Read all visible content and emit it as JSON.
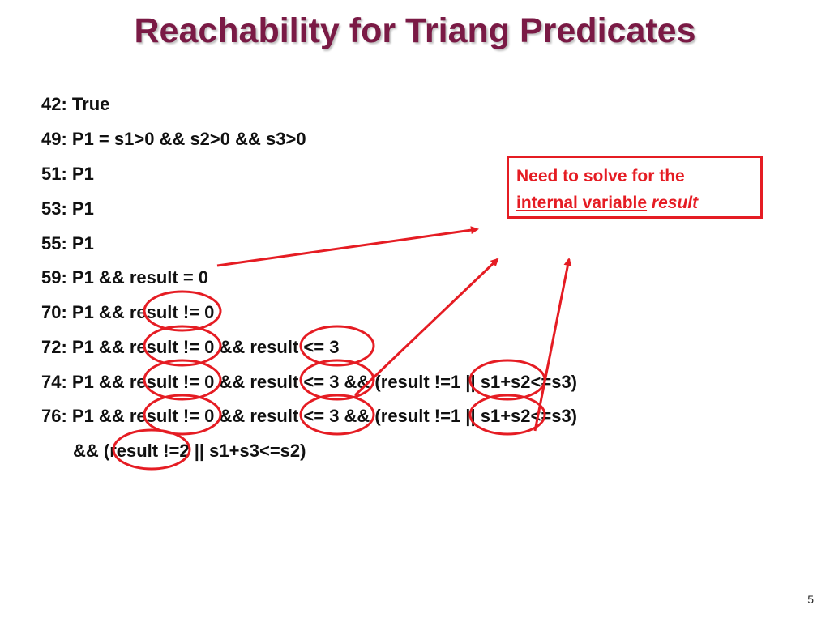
{
  "slide": {
    "title": "Reachability for Triang Predicates",
    "lines": [
      "42: True",
      "49: P1 = s1>0 && s2>0 && s3>0",
      "51: P1",
      "53: P1",
      "55: P1",
      "59: P1 && result = 0",
      "70: P1 && result != 0",
      "72: P1 && result != 0 && result <= 3",
      "74: P1 && result != 0 && result <= 3 && (result !=1 || s1+s2<=s3)",
      "76: P1 && result != 0 && result <= 3 && (result !=1 || s1+s2<=s3)",
      "&& (result !=2 || s1+s3<=s2)"
    ],
    "callout": {
      "line1": "Need to solve for the",
      "line2_underlined": "internal variable",
      "line2_italic": "result"
    },
    "page_number": "5"
  },
  "colors": {
    "title": "#7a1a45",
    "text": "#111111",
    "annotation": "#e51c23"
  }
}
